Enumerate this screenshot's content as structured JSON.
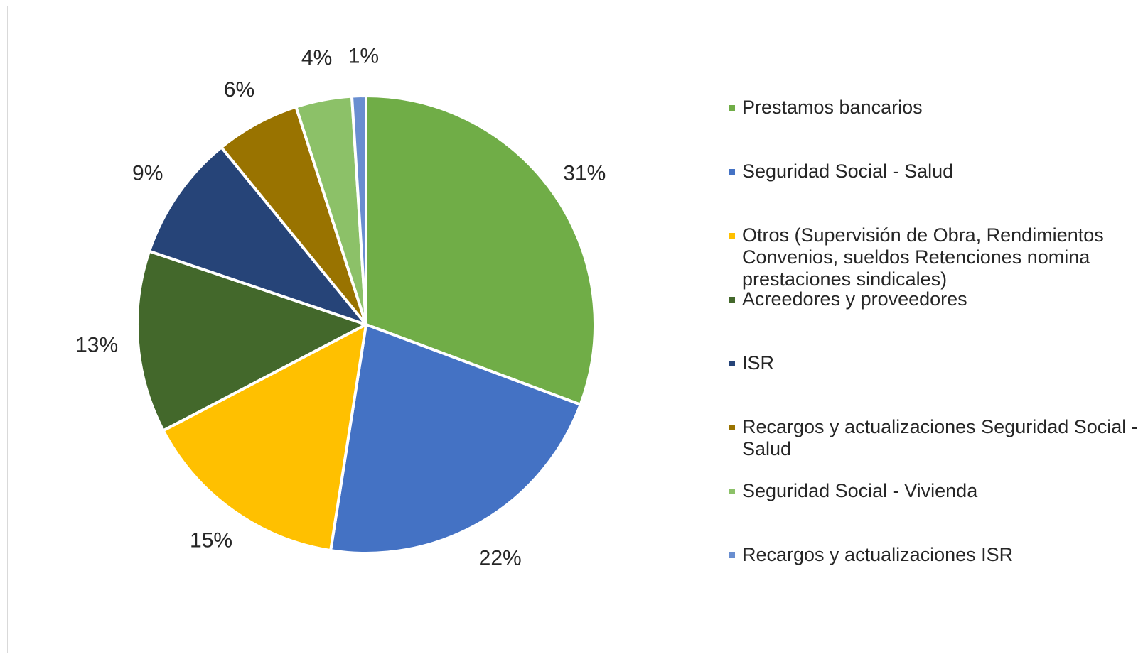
{
  "chart_data": {
    "type": "pie",
    "slices": [
      {
        "label": "Prestamos bancarios",
        "value": 31,
        "display": "31%",
        "color": "#70AD47"
      },
      {
        "label": "Seguridad Social - Salud",
        "value": 22,
        "display": "22%",
        "color": "#4472C4"
      },
      {
        "label": "Otros (Supervisión de Obra, Rendimientos Convenios, sueldos Retenciones nomina prestaciones sindicales)",
        "value": 15,
        "display": "15%",
        "color": "#FFC000"
      },
      {
        "label": "Acreedores y proveedores",
        "value": 13,
        "display": "13%",
        "color": "#43682B"
      },
      {
        "label": "ISR",
        "value": 9,
        "display": "9%",
        "color": "#264478"
      },
      {
        "label": "Recargos y actualizaciones Seguridad Social - Salud",
        "value": 6,
        "display": "6%",
        "color": "#997300"
      },
      {
        "label": "Seguridad Social - Vivienda",
        "value": 4,
        "display": "4%",
        "color": "#8CC168"
      },
      {
        "label": "Recargos y actualizaciones ISR",
        "value": 1,
        "display": "1%",
        "color": "#698ED0"
      }
    ],
    "legend_position": "right"
  }
}
